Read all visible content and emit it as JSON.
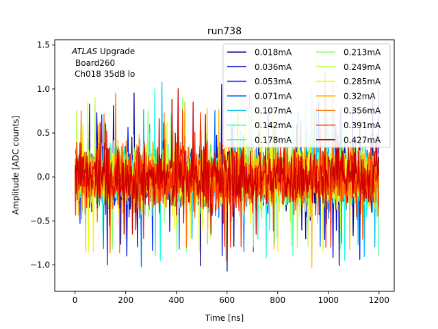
{
  "chart_data": {
    "type": "line",
    "title": "run738",
    "xlabel": "Time [ns]",
    "ylabel": "Amplitude [ADC counts]",
    "xlim": [
      -80,
      1260
    ],
    "ylim": [
      -1.3,
      1.56
    ],
    "xticks": [
      0,
      200,
      400,
      600,
      800,
      1000,
      1200
    ],
    "yticks": [
      -1.0,
      -0.5,
      0.0,
      0.5,
      1.0,
      1.5
    ],
    "xtick_labels": [
      "0",
      "200",
      "400",
      "600",
      "800",
      "1000",
      "1200"
    ],
    "ytick_labels": [
      "−1.0",
      "−0.5",
      "0.0",
      "0.5",
      "1.0",
      "1.5"
    ],
    "grid": false,
    "legend_position": "top-right",
    "legend_columns": 2,
    "annotation": {
      "line1_italic": "ATLAS",
      "line1_rest": " Upgrade",
      "line2": "Board260",
      "line3": "Ch018 35dB lo"
    },
    "series": [
      {
        "name": "0.018mA",
        "color": "#00008f",
        "x_range": [
          0,
          1200
        ],
        "approx_min": -1.05,
        "approx_max": 1.0
      },
      {
        "name": "0.036mA",
        "color": "#0000d6",
        "x_range": [
          0,
          1200
        ],
        "approx_min": -1.1,
        "approx_max": 1.05
      },
      {
        "name": "0.053mA",
        "color": "#0020ff",
        "x_range": [
          0,
          1200
        ],
        "approx_min": -1.0,
        "approx_max": 1.25
      },
      {
        "name": "0.071mA",
        "color": "#0070ff",
        "x_range": [
          0,
          1200
        ],
        "approx_min": -1.15,
        "approx_max": 1.2
      },
      {
        "name": "0.107mA",
        "color": "#00c0ff",
        "x_range": [
          0,
          1200
        ],
        "approx_min": -1.18,
        "approx_max": 1.15
      },
      {
        "name": "0.142mA",
        "color": "#16ffe1",
        "x_range": [
          0,
          1200
        ],
        "approx_min": -0.95,
        "approx_max": 1.0
      },
      {
        "name": "0.178mA",
        "color": "#50ffad",
        "x_range": [
          0,
          1200
        ],
        "approx_min": -0.9,
        "approx_max": 0.95
      },
      {
        "name": "0.213mA",
        "color": "#86ff71",
        "x_range": [
          0,
          1200
        ],
        "approx_min": -0.85,
        "approx_max": 0.9
      },
      {
        "name": "0.249mA",
        "color": "#b9ff3c",
        "x_range": [
          0,
          1200
        ],
        "approx_min": -0.8,
        "approx_max": 0.9
      },
      {
        "name": "0.285mA",
        "color": "#f4f802",
        "x_range": [
          0,
          1200
        ],
        "approx_min": -0.85,
        "approx_max": 0.85
      },
      {
        "name": "0.32mA",
        "color": "#ffb900",
        "x_range": [
          0,
          1200
        ],
        "approx_min": -1.05,
        "approx_max": 0.9
      },
      {
        "name": "0.356mA",
        "color": "#ff7300",
        "x_range": [
          0,
          1200
        ],
        "approx_min": -0.9,
        "approx_max": 1.3
      },
      {
        "name": "0.391mA",
        "color": "#ff3000",
        "x_range": [
          0,
          1200
        ],
        "approx_min": -0.8,
        "approx_max": 1.2
      },
      {
        "name": "0.427mA",
        "color": "#cd0000",
        "x_range": [
          0,
          1200
        ],
        "approx_min": -0.65,
        "approx_max": 1.25
      }
    ]
  }
}
